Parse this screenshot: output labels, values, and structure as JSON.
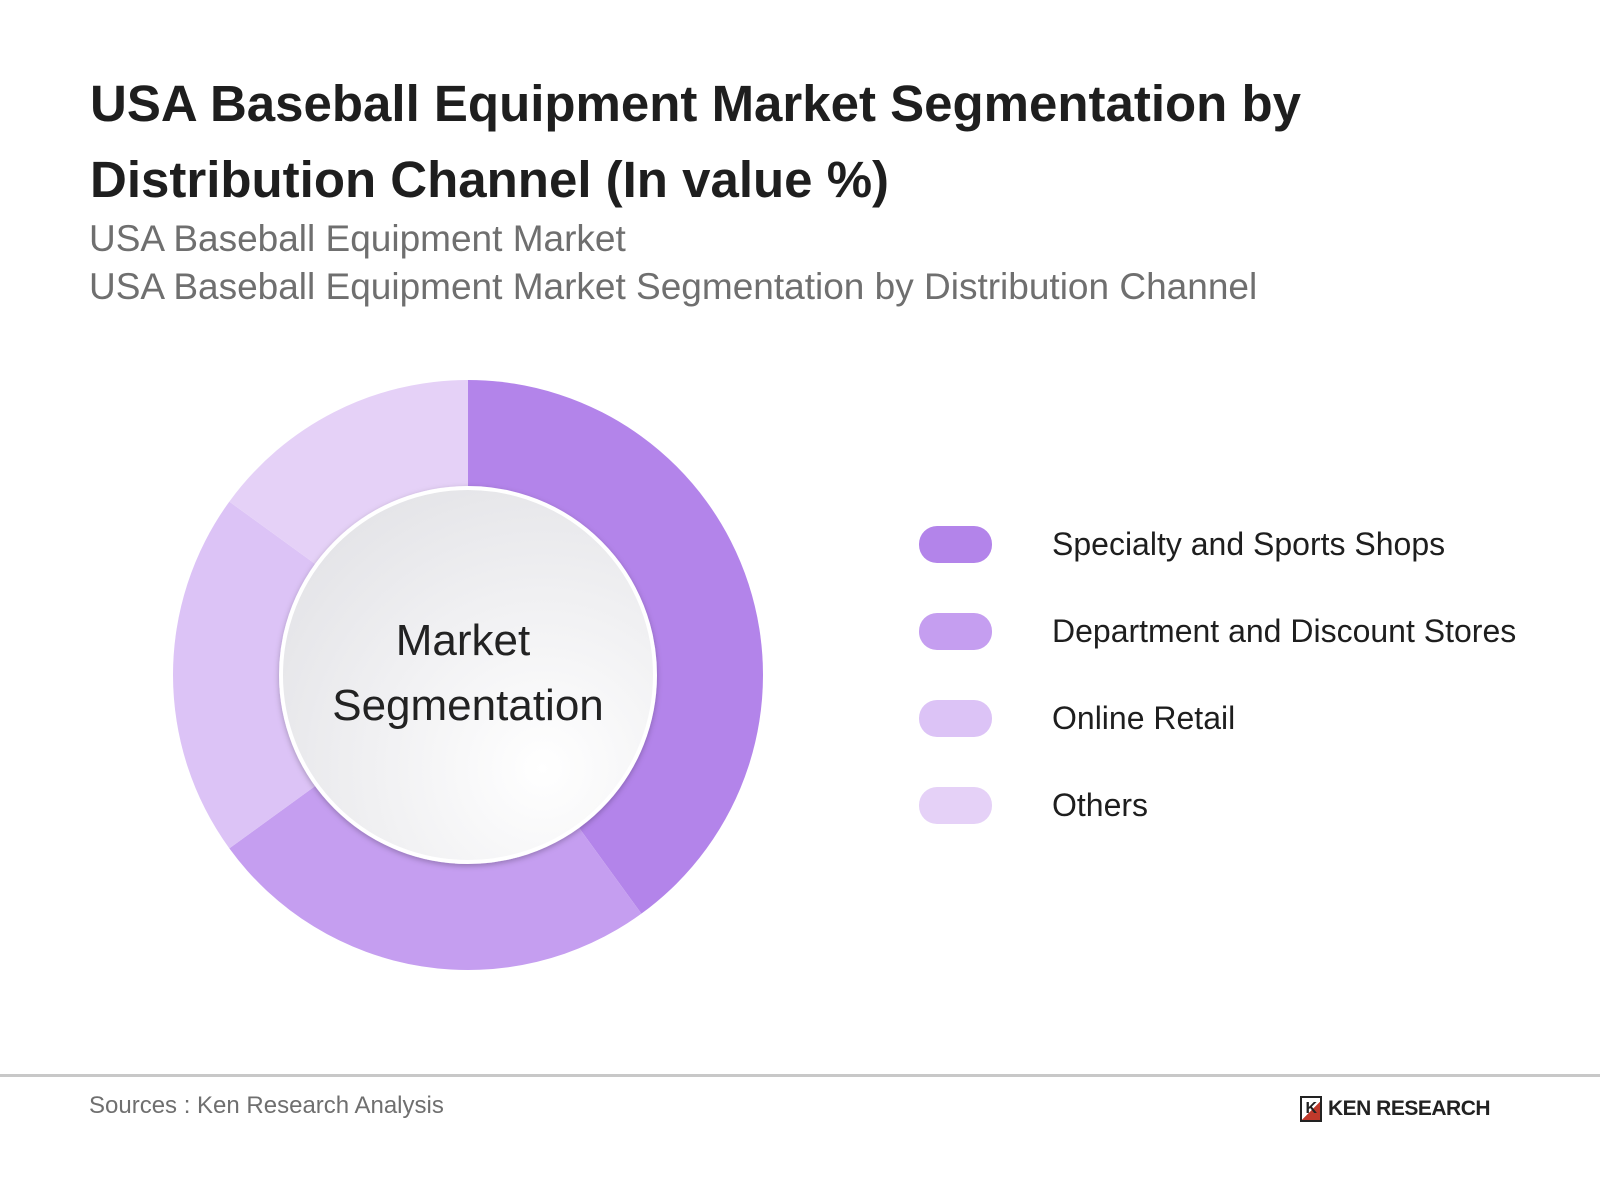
{
  "title": "USA Baseball Equipment Market Segmentation by Distribution Channel (In value %)",
  "subtitle_1": "USA Baseball Equipment Market",
  "subtitle_2": "USA Baseball Equipment Market Segmentation by Distribution Channel",
  "chart_data": {
    "type": "pie",
    "center_label": [
      "Market",
      "Segmentation"
    ],
    "categories": [
      "Specialty and Sports Shops",
      "Department and Discount Stores",
      "Online Retail",
      "Others"
    ],
    "values": [
      40,
      25,
      20,
      15
    ],
    "colors": [
      "#b384ea",
      "#c59ef0",
      "#dcc3f6",
      "#e5d1f7"
    ],
    "legend_position": "right"
  },
  "source": "Sources : Ken Research Analysis",
  "logo_text": "KEN RESEARCH"
}
